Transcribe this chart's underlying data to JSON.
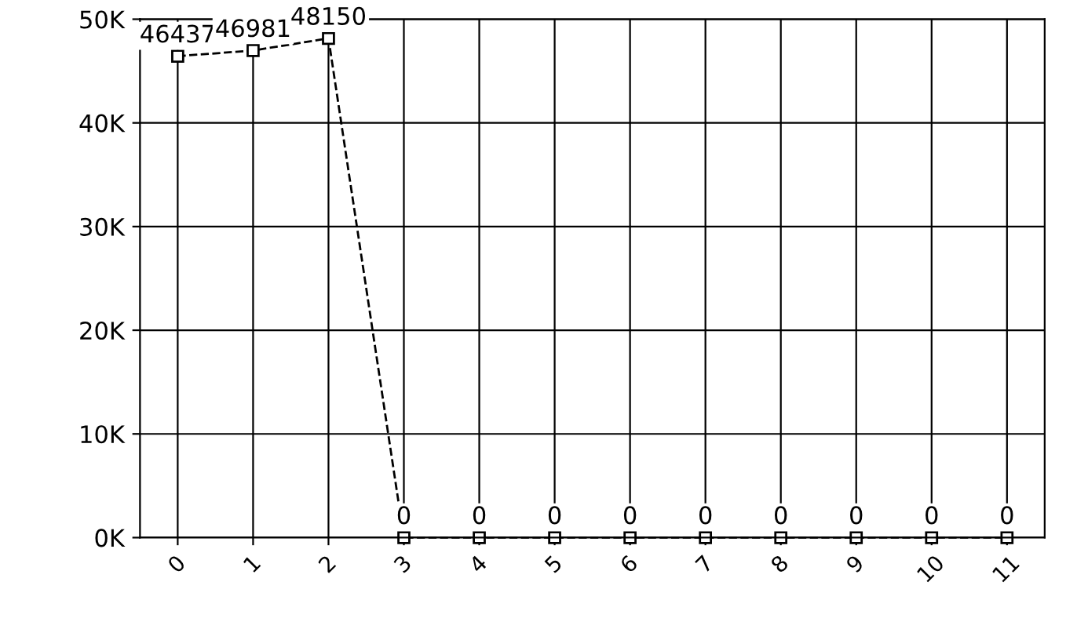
{
  "chart_data": {
    "type": "line",
    "categories": [
      "0",
      "1",
      "2",
      "3",
      "4",
      "5",
      "6",
      "7",
      "8",
      "9",
      "10",
      "11"
    ],
    "series": [
      {
        "color": "#000000",
        "values": [
          46437,
          46981,
          48150,
          0,
          0,
          0,
          0,
          0,
          0,
          0,
          0,
          0
        ]
      }
    ],
    "ylim": [
      0,
      50000
    ],
    "yticks": [
      {
        "value": 0,
        "label": "0K"
      },
      {
        "value": 10000,
        "label": "10K"
      },
      {
        "value": 20000,
        "label": "20K"
      },
      {
        "value": 30000,
        "label": "30K"
      },
      {
        "value": 40000,
        "label": "40K"
      },
      {
        "value": 50000,
        "label": "50K"
      }
    ],
    "data_labels": true,
    "grid": true,
    "marker": "square",
    "line_style": "dashed"
  }
}
